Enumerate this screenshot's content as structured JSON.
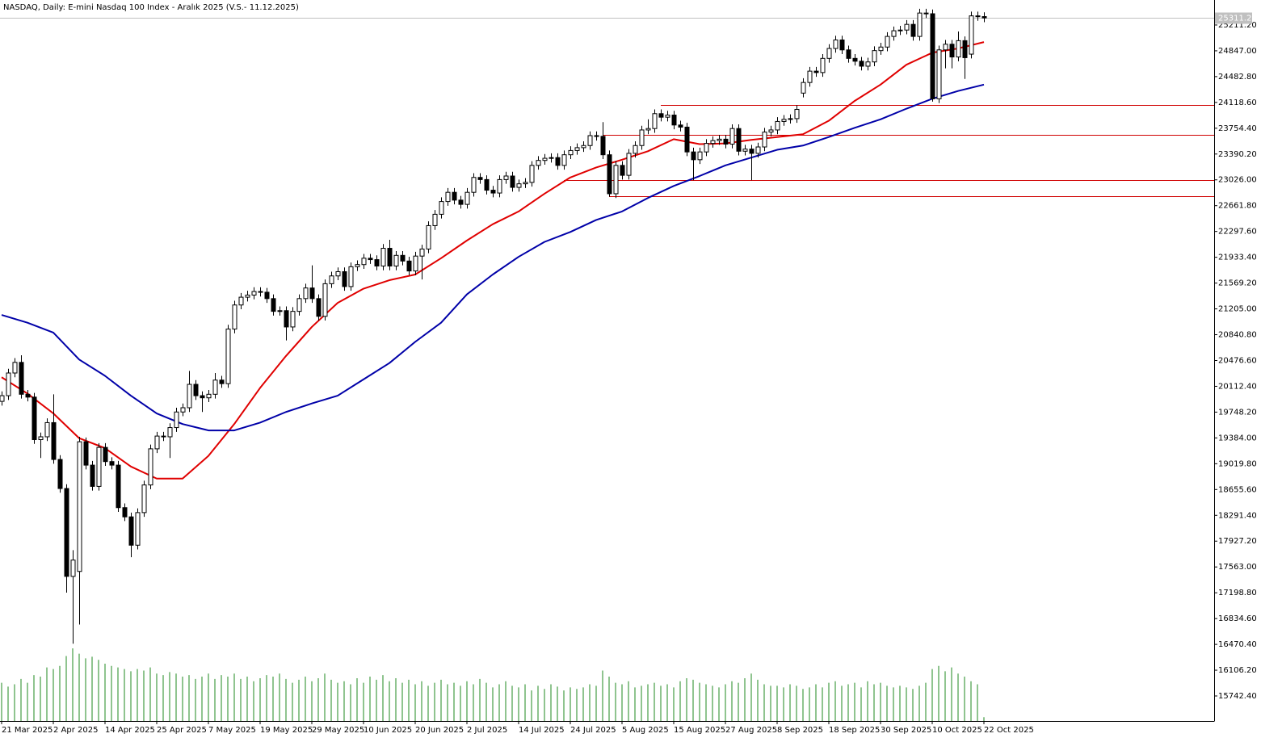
{
  "chart_data": {
    "type": "candlestick",
    "title": "NASDAQ, Daily:  E-mini Nasdaq 100 Index - Aralık 2025 (V.S.- 11.12.2025)",
    "categories": [
      "21 Mar 2025",
      null,
      null,
      null,
      null,
      null,
      null,
      null,
      "2 Apr 2025",
      null,
      null,
      null,
      null,
      null,
      null,
      null,
      "14 Apr 2025",
      null,
      null,
      null,
      null,
      null,
      null,
      null,
      "25 Apr 2025",
      null,
      null,
      null,
      null,
      null,
      null,
      null,
      "7 May 2025",
      null,
      null,
      null,
      null,
      null,
      null,
      null,
      "19 May 2025",
      null,
      null,
      null,
      null,
      null,
      null,
      null,
      "29 May 2025",
      null,
      null,
      null,
      null,
      null,
      null,
      null,
      "10 Jun 2025",
      null,
      null,
      null,
      null,
      null,
      null,
      null,
      "20 Jun 2025",
      null,
      null,
      null,
      null,
      null,
      null,
      null,
      "2 Jul 2025",
      null,
      null,
      null,
      null,
      null,
      null,
      null,
      "14 Jul 2025",
      null,
      null,
      null,
      null,
      null,
      null,
      null,
      "24 Jul 2025",
      null,
      null,
      null,
      null,
      null,
      null,
      null,
      "5 Aug 2025",
      null,
      null,
      null,
      null,
      null,
      null,
      null,
      "15 Aug 2025",
      null,
      null,
      null,
      null,
      null,
      null,
      null,
      "27 Aug 2025",
      null,
      null,
      null,
      null,
      null,
      null,
      null,
      "8 Sep 2025",
      null,
      null,
      null,
      null,
      null,
      null,
      null,
      "18 Sep 2025",
      null,
      null,
      null,
      null,
      null,
      null,
      null,
      "30 Sep 2025",
      null,
      null,
      null,
      null,
      null,
      null,
      null,
      "10 Oct 2025",
      null,
      null,
      null,
      null,
      null,
      null,
      null,
      "22 Oct 2025"
    ],
    "open": [
      19900,
      19980,
      20300,
      20450,
      20000,
      19960,
      19360,
      19400,
      19600,
      19080,
      18670,
      17430,
      17500,
      19330,
      19000,
      18700,
      19250,
      19050,
      19000,
      18400,
      18270,
      17870,
      18330,
      18720,
      19230,
      19410,
      19400,
      19530,
      19750,
      19810,
      20140,
      19980,
      19950,
      20000,
      20200,
      20150,
      20920,
      21260,
      21370,
      21400,
      21450,
      21440,
      21350,
      21170,
      21180,
      20950,
      21170,
      21350,
      21500,
      21350,
      21100,
      21560,
      21670,
      21730,
      21520,
      21800,
      21830,
      21920,
      21900,
      21810,
      22060,
      21810,
      21960,
      21880,
      21740,
      21950,
      22050,
      22380,
      22540,
      22720,
      22850,
      22740,
      22680,
      22850,
      23060,
      23030,
      22880,
      22840,
      23030,
      23080,
      22920,
      22970,
      22990,
      23230,
      23300,
      23330,
      23340,
      23230,
      23380,
      23440,
      23480,
      23510,
      23650,
      23640,
      23380,
      22830,
      23230,
      23090,
      23400,
      23510,
      23730,
      23750,
      23960,
      23910,
      23940,
      23800,
      23770,
      23420,
      23310,
      23420,
      23540,
      23580,
      23600,
      23530,
      23750,
      23430,
      23460,
      23400,
      23490,
      23700,
      23730,
      23850,
      23880,
      23890,
      24250,
      24400,
      24560,
      24540,
      24740,
      24880,
      25000,
      24860,
      24740,
      24700,
      24630,
      24690,
      24850,
      24900,
      25050,
      25130,
      25140,
      25220,
      25050,
      25380,
      25370,
      24170,
      24860,
      24940,
      24760,
      24990,
      24800,
      25340,
      25330
    ],
    "high": [
      20040,
      20360,
      20510,
      20550,
      20060,
      20020,
      19460,
      19660,
      20000,
      19140,
      18730,
      17800,
      19400,
      19390,
      19060,
      19310,
      19310,
      19110,
      19060,
      18460,
      18330,
      18390,
      18780,
      19290,
      19470,
      19470,
      19590,
      19810,
      19870,
      20330,
      20200,
      20040,
      20060,
      20300,
      20260,
      20980,
      21320,
      21430,
      21460,
      21510,
      21510,
      21500,
      21410,
      21240,
      21240,
      21230,
      21410,
      21560,
      21820,
      21410,
      21620,
      21730,
      21790,
      21790,
      21860,
      21890,
      21980,
      21980,
      21960,
      22120,
      22180,
      22020,
      22020,
      21940,
      22010,
      22110,
      22440,
      22600,
      22780,
      22910,
      22910,
      22800,
      22910,
      23120,
      23120,
      23090,
      22940,
      23090,
      23140,
      23140,
      23030,
      23050,
      23290,
      23360,
      23390,
      23400,
      23400,
      23440,
      23500,
      23540,
      23570,
      23710,
      23710,
      23840,
      23440,
      23290,
      23290,
      23460,
      23570,
      23790,
      23880,
      24020,
      24020,
      24000,
      24000,
      23860,
      23830,
      23480,
      23480,
      23600,
      23640,
      23660,
      23660,
      23810,
      23810,
      23520,
      23520,
      23550,
      23760,
      23790,
      23910,
      23940,
      23950,
      24080,
      24460,
      24620,
      24620,
      24800,
      24940,
      25060,
      25060,
      24920,
      24800,
      24760,
      24750,
      24910,
      24960,
      25110,
      25190,
      25200,
      25280,
      25280,
      25440,
      25440,
      25430,
      24920,
      25000,
      25000,
      25120,
      25050,
      25400,
      25400,
      25390
    ],
    "low": [
      19840,
      19920,
      20240,
      19940,
      19900,
      19300,
      19100,
      19340,
      19020,
      18610,
      17200,
      16480,
      16750,
      18940,
      18640,
      18640,
      18990,
      18940,
      18340,
      18210,
      17700,
      17810,
      18270,
      18660,
      19170,
      19340,
      19100,
      19470,
      19690,
      19750,
      19920,
      19750,
      19890,
      19940,
      20090,
      20090,
      20860,
      21200,
      21310,
      21340,
      21380,
      21290,
      21110,
      21110,
      20760,
      20890,
      21110,
      21290,
      21290,
      21040,
      21040,
      21500,
      21610,
      21460,
      21460,
      21740,
      21770,
      21840,
      21750,
      21750,
      21750,
      21750,
      21820,
      21680,
      21680,
      21620,
      21990,
      22320,
      22480,
      22660,
      22680,
      22620,
      22620,
      22790,
      22970,
      22820,
      22780,
      22780,
      22970,
      22860,
      22860,
      22910,
      22930,
      23170,
      23240,
      23270,
      23170,
      23170,
      23320,
      23380,
      23420,
      23450,
      23580,
      23320,
      22790,
      22770,
      23030,
      23030,
      23340,
      23450,
      23670,
      23690,
      23850,
      23850,
      23740,
      23710,
      23360,
      23020,
      23250,
      23360,
      23480,
      23520,
      23470,
      23470,
      23370,
      23370,
      23020,
      23340,
      23430,
      23640,
      23670,
      23790,
      23820,
      23830,
      24190,
      24340,
      24480,
      24480,
      24680,
      24820,
      24800,
      24680,
      24640,
      24570,
      24570,
      24630,
      24790,
      24840,
      24990,
      25070,
      25080,
      24990,
      24990,
      25310,
      24130,
      24110,
      24600,
      24600,
      24700,
      24450,
      24740,
      25270,
      25250
    ],
    "close": [
      19980,
      20300,
      20450,
      20000,
      19960,
      19360,
      19400,
      19600,
      19080,
      18670,
      17430,
      17660,
      19330,
      19000,
      18700,
      19250,
      19050,
      19000,
      18400,
      18270,
      17870,
      18330,
      18720,
      19230,
      19410,
      19400,
      19530,
      19750,
      19810,
      20140,
      19980,
      19950,
      20000,
      20200,
      20150,
      20920,
      21260,
      21370,
      21400,
      21450,
      21440,
      21350,
      21170,
      21180,
      20950,
      21170,
      21350,
      21500,
      21350,
      21100,
      21560,
      21670,
      21730,
      21520,
      21800,
      21830,
      21920,
      21900,
      21810,
      22060,
      21810,
      21960,
      21880,
      21740,
      21950,
      22050,
      22380,
      22540,
      22720,
      22850,
      22740,
      22680,
      22850,
      23060,
      23030,
      22880,
      22840,
      23030,
      23080,
      22920,
      22970,
      22990,
      23230,
      23300,
      23330,
      23340,
      23230,
      23380,
      23440,
      23480,
      23510,
      23650,
      23640,
      23380,
      22830,
      23230,
      23090,
      23400,
      23510,
      23730,
      23750,
      23960,
      23910,
      23940,
      23800,
      23770,
      23420,
      23310,
      23420,
      23540,
      23580,
      23600,
      23530,
      23750,
      23430,
      23460,
      23400,
      23490,
      23700,
      23730,
      23850,
      23880,
      23890,
      24020,
      24400,
      24560,
      24540,
      24740,
      24880,
      25000,
      24860,
      24740,
      24700,
      24630,
      24690,
      24850,
      24900,
      25050,
      25130,
      25140,
      25220,
      25050,
      25380,
      25370,
      24170,
      24860,
      24940,
      24760,
      24990,
      24750,
      25340,
      25330,
      25311.25
    ],
    "volume": [
      50,
      45,
      48,
      55,
      50,
      60,
      58,
      70,
      68,
      72,
      85,
      95,
      88,
      82,
      84,
      80,
      75,
      72,
      70,
      68,
      65,
      68,
      66,
      70,
      62,
      60,
      64,
      62,
      58,
      60,
      55,
      58,
      62,
      55,
      60,
      58,
      62,
      55,
      58,
      52,
      56,
      60,
      58,
      62,
      55,
      50,
      54,
      58,
      52,
      56,
      62,
      54,
      50,
      52,
      48,
      56,
      50,
      58,
      54,
      60,
      52,
      56,
      50,
      54,
      48,
      52,
      46,
      50,
      54,
      48,
      50,
      46,
      52,
      48,
      55,
      50,
      44,
      48,
      52,
      46,
      44,
      48,
      40,
      46,
      42,
      48,
      45,
      40,
      44,
      42,
      44,
      48,
      46,
      66,
      58,
      50,
      48,
      52,
      44,
      46,
      48,
      50,
      46,
      48,
      44,
      52,
      56,
      54,
      50,
      48,
      46,
      44,
      48,
      52,
      50,
      56,
      62,
      54,
      48,
      46,
      46,
      44,
      48,
      46,
      42,
      44,
      48,
      44,
      50,
      52,
      46,
      48,
      50,
      44,
      52,
      48,
      50,
      46,
      44,
      46,
      44,
      42,
      46,
      50,
      68,
      72,
      65,
      70,
      62,
      58,
      52,
      48,
      5
    ],
    "up_color": "#ffffff",
    "down_color": "#000000",
    "volume_color": "#1f8a1f",
    "overlays": [
      {
        "color": "#e00000",
        "x": [
          0,
          4,
          8,
          12,
          16,
          20,
          24,
          28,
          32,
          36,
          40,
          44,
          48,
          52,
          56,
          60,
          64,
          68,
          72,
          76,
          80,
          84,
          88,
          92,
          96,
          100,
          104,
          108,
          112,
          116,
          120,
          124,
          128,
          132,
          136,
          140,
          144,
          148,
          152
        ],
        "values": [
          20240,
          20010,
          19730,
          19380,
          19240,
          18980,
          18810,
          18810,
          19130,
          19580,
          20090,
          20540,
          20950,
          21290,
          21490,
          21610,
          21690,
          21920,
          22170,
          22400,
          22580,
          22830,
          23060,
          23200,
          23310,
          23430,
          23600,
          23530,
          23540,
          23590,
          23630,
          23670,
          23860,
          24140,
          24370,
          24650,
          24820,
          24880,
          24970
        ]
      },
      {
        "color": "#0000a8",
        "x": [
          0,
          4,
          8,
          12,
          16,
          20,
          24,
          28,
          32,
          36,
          40,
          44,
          48,
          52,
          56,
          60,
          64,
          68,
          72,
          76,
          80,
          84,
          88,
          92,
          96,
          100,
          104,
          108,
          112,
          116,
          120,
          124,
          128,
          132,
          136,
          140,
          144,
          148,
          152
        ],
        "values": [
          21120,
          21010,
          20870,
          20490,
          20260,
          19980,
          19730,
          19580,
          19490,
          19490,
          19600,
          19750,
          19870,
          19980,
          20210,
          20440,
          20740,
          21010,
          21410,
          21690,
          21940,
          22150,
          22290,
          22460,
          22580,
          22770,
          22940,
          23080,
          23230,
          23340,
          23450,
          23510,
          23630,
          23760,
          23880,
          24030,
          24170,
          24280,
          24370
        ]
      }
    ],
    "levels": {
      "color": "#d00000",
      "values": [
        24083,
        23662,
        23024,
        22796
      ],
      "start": [
        102,
        93,
        87,
        94
      ]
    },
    "ylim": [
      15389,
      25564
    ],
    "yticks": [
      {
        "value": 25211.2,
        "label": "25211.20"
      },
      {
        "value": 24847,
        "label": "24847.00"
      },
      {
        "value": 24482.8,
        "label": "24482.80"
      },
      {
        "value": 24118.6,
        "label": "24118.60"
      },
      {
        "value": 23754.4,
        "label": "23754.40"
      },
      {
        "value": 23390.2,
        "label": "23390.20"
      },
      {
        "value": 23026,
        "label": "23026.00"
      },
      {
        "value": 22661.8,
        "label": "22661.80"
      },
      {
        "value": 22297.6,
        "label": "22297.60"
      },
      {
        "value": 21933.4,
        "label": "21933.40"
      },
      {
        "value": 21569.2,
        "label": "21569.20"
      },
      {
        "value": 21205,
        "label": "21205.00"
      },
      {
        "value": 20840.8,
        "label": "20840.80"
      },
      {
        "value": 20476.6,
        "label": "20476.60"
      },
      {
        "value": 20112.4,
        "label": "20112.40"
      },
      {
        "value": 19748.2,
        "label": "19748.20"
      },
      {
        "value": 19384,
        "label": "19384.00"
      },
      {
        "value": 19019.8,
        "label": "19019.80"
      },
      {
        "value": 18655.6,
        "label": "18655.60"
      },
      {
        "value": 18291.4,
        "label": "18291.40"
      },
      {
        "value": 17927.2,
        "label": "17927.20"
      },
      {
        "value": 17563,
        "label": "17563.00"
      },
      {
        "value": 17198.8,
        "label": "17198.80"
      },
      {
        "value": 16834.6,
        "label": "16834.60"
      },
      {
        "value": 16470.4,
        "label": "16470.40"
      },
      {
        "value": 16106.2,
        "label": "16106.20"
      },
      {
        "value": 15742.4,
        "label": "15742.40"
      }
    ]
  }
}
